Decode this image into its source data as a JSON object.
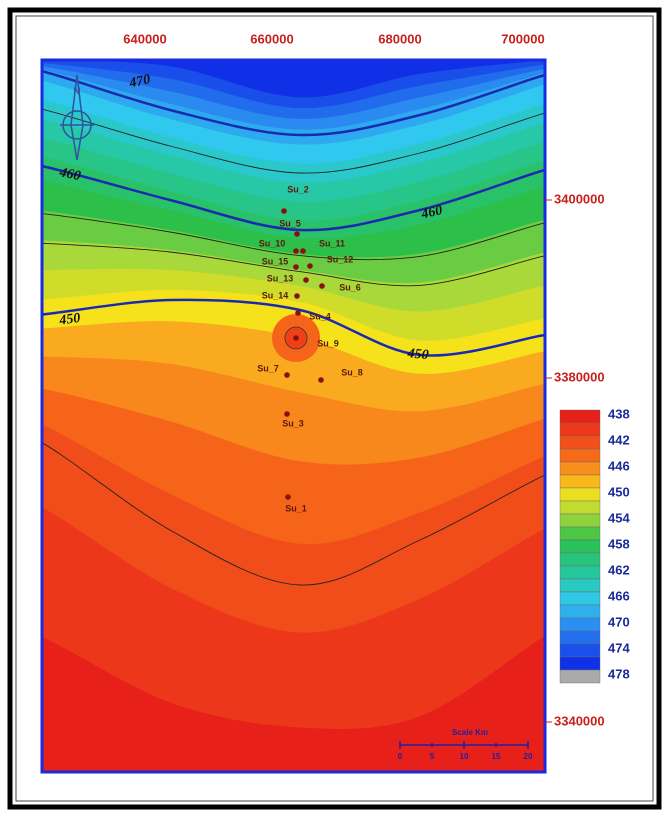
{
  "x_axis_labels": [
    "640000",
    "660000",
    "680000",
    "700000"
  ],
  "y_axis_labels": [
    "3400000",
    "3380000",
    "3340000"
  ],
  "contour_labels": [
    "470",
    "460",
    "460",
    "450",
    "450"
  ],
  "wells": [
    "Su_2",
    "Su_5",
    "Su_10",
    "Su_11",
    "Su_15",
    "Su_12",
    "Su_13",
    "Su_6",
    "Su_14",
    "Su_4",
    "Su_9",
    "Su_7",
    "Su_8",
    "Su_3",
    "Su_1"
  ],
  "legend": [
    "438",
    "442",
    "446",
    "450",
    "454",
    "458",
    "462",
    "466",
    "470",
    "474",
    "478"
  ],
  "scale": {
    "title": "Scale Km",
    "ticks": [
      "0",
      "5",
      "10",
      "15",
      "20"
    ]
  }
}
